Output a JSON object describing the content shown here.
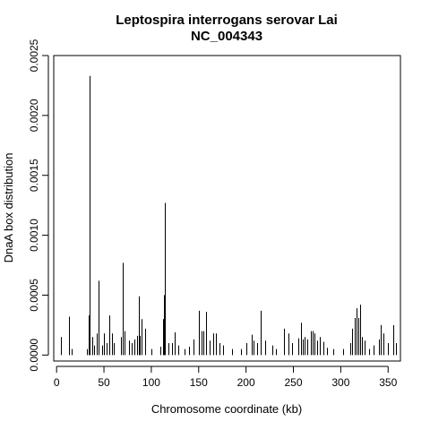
{
  "chart_data": {
    "type": "bar",
    "title": "Leptospira interrogans serovar Lai",
    "subtitle": "NC_004343",
    "xlabel": "Chromosome coordinate (kb)",
    "ylabel": "DnaA box distribution",
    "xlim": [
      -3,
      363
    ],
    "ylim": [
      -5e-05,
      0.0025
    ],
    "xticks": [
      0,
      50,
      100,
      150,
      200,
      250,
      300,
      350
    ],
    "xtick_labels": [
      "0",
      "50",
      "100",
      "150",
      "200",
      "250",
      "300",
      "350"
    ],
    "yticks": [
      0,
      0.0005,
      0.001,
      0.0015,
      0.002,
      0.0025
    ],
    "ytick_labels": [
      "0.0000",
      "0.0005",
      "0.0010",
      "0.0015",
      "0.0020",
      "0.0025"
    ],
    "grid": false,
    "legend": "none",
    "color": "#000000",
    "x": [
      5,
      13,
      16,
      32,
      34,
      35,
      38,
      40,
      42,
      44,
      48,
      50,
      53,
      56,
      58,
      60,
      68,
      70,
      72,
      76,
      79,
      82,
      85,
      87,
      88,
      90,
      93,
      100,
      110,
      112,
      113,
      114,
      118,
      122,
      125,
      128,
      135,
      140,
      145,
      150,
      153,
      155,
      158,
      162,
      165,
      168,
      172,
      176,
      185,
      195,
      200,
      206,
      208,
      212,
      215,
      220,
      228,
      232,
      240,
      245,
      249,
      255,
      258,
      260,
      262,
      265,
      268,
      270,
      272,
      275,
      278,
      282,
      285,
      292,
      302,
      310,
      312,
      315,
      317,
      319,
      320,
      322,
      325,
      330,
      335,
      340,
      342,
      345,
      350,
      355,
      358
    ],
    "values": [
      0.00015,
      0.00032,
      5e-05,
      5e-05,
      0.00033,
      0.00233,
      0.00015,
      8e-05,
      0.00018,
      0.00062,
      8e-05,
      0.00018,
      0.0001,
      0.00033,
      0.00018,
      0.0001,
      0.00015,
      0.00077,
      0.0002,
      0.00012,
      0.0001,
      0.00013,
      0.00016,
      0.00049,
      0.00016,
      0.0003,
      0.00022,
      5e-05,
      7e-05,
      0.0003,
      0.0005,
      0.00127,
      0.0001,
      0.0001,
      0.00019,
      8e-05,
      5e-05,
      7e-05,
      0.00013,
      0.00037,
      0.0002,
      0.0002,
      0.00036,
      0.00012,
      0.00018,
      0.00018,
      0.0001,
      8e-05,
      5e-05,
      5e-05,
      0.0001,
      0.00017,
      0.00012,
      0.0001,
      0.00037,
      0.00012,
      8e-05,
      5e-05,
      0.00022,
      0.00018,
      0.0001,
      0.00014,
      0.00027,
      0.00013,
      0.00015,
      0.00013,
      0.0002,
      0.0002,
      0.00018,
      0.00012,
      0.00015,
      0.00011,
      6e-05,
      5e-05,
      5e-05,
      0.0001,
      0.00022,
      0.00031,
      0.00039,
      0.00031,
      0.00042,
      0.00015,
      0.00012,
      5e-05,
      8e-05,
      0.00013,
      0.00025,
      0.00018,
      0.0001,
      0.00025,
      0.0001
    ]
  }
}
